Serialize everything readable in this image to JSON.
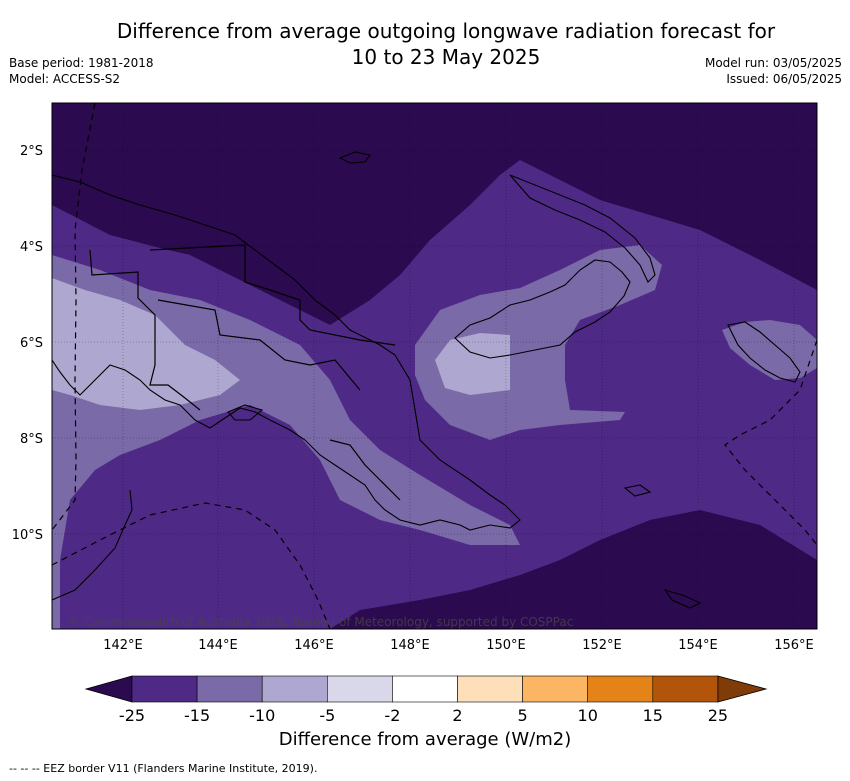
{
  "header": {
    "title_line1": "Difference from average outgoing longwave radiation forecast for",
    "title_line2": "10 to 23 May 2025",
    "base_period": "Base period: 1981-2018",
    "model": "Model: ACCESS-S2",
    "model_run": "Model run: 03/05/2025",
    "issued": "Issued: 06/05/2025"
  },
  "map": {
    "lat_labels": [
      "2°S",
      "4°S",
      "6°S",
      "8°S",
      "10°S"
    ],
    "lon_labels": [
      "142°E",
      "144°E",
      "146°E",
      "148°E",
      "150°E",
      "152°E",
      "154°E",
      "156°E"
    ],
    "copyright": "© Commonwealth of Australia 2025, Bureau of Meteorology, supported by COSPPac",
    "level_colors": {
      "below_-25": "#2b0a4f",
      "-25_to_-15": "#4e2a86",
      "-15_to_-10": "#7a6aa8",
      "-10_to_-5": "#aea7cf"
    }
  },
  "legend": {
    "title": "Difference from average (W/m2)",
    "ticks": [
      "-25",
      "-15",
      "-10",
      "-5",
      "-2",
      "2",
      "5",
      "10",
      "15",
      "25"
    ],
    "colors": [
      "#2b0a4f",
      "#4e2a86",
      "#7a6aa8",
      "#aea7cf",
      "#d9d8ea",
      "#ffffff",
      "#fde0b9",
      "#fbb563",
      "#e48418",
      "#b25409",
      "#7f3b08"
    ]
  },
  "eez_note": "-- -- -- EEZ border V11 (Flanders Marine Institute, 2019)."
}
